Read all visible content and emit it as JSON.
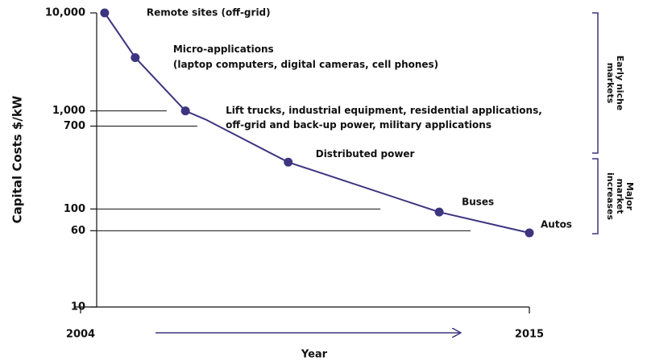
{
  "chart_data": {
    "type": "line",
    "y_label": "Capital Costs $/kW",
    "x_label": "Year",
    "log_y": true,
    "xlim": [
      2004,
      2015
    ],
    "ylim": [
      10,
      10000
    ],
    "xticks": [
      2004,
      2015
    ],
    "yticks": [
      10,
      60,
      100,
      700,
      {
        "value": 1000,
        "label": "1,000"
      },
      {
        "value": 10000,
        "label": "10,000"
      }
    ],
    "hlines": [
      {
        "y": 1000,
        "x_end": 2006.11
      },
      {
        "y": 700,
        "x_end": 2006.86
      },
      {
        "y": 100,
        "x_end": 2011.35
      },
      {
        "y": 60,
        "x_end": 2013.56
      }
    ],
    "series": [
      {
        "name": "Capital cost",
        "color": "#3d3580",
        "x": [
          2004.59,
          2005.34,
          2006.57,
          2007.06,
          2009.09,
          2012.79,
          2015
        ],
        "values": [
          10000,
          3500,
          1000,
          820,
          300,
          93,
          57
        ],
        "markers": [
          true,
          true,
          true,
          false,
          true,
          true,
          true
        ],
        "point_labels": [
          [
            "Remote sites (off-grid)"
          ],
          [
            "Micro-applications",
            "(laptop computers, digital cameras, cell phones)"
          ],
          [
            "Lift trucks, industrial equipment, residential applications,",
            "off-grid and back-up power, military applications"
          ],
          null,
          [
            "Distributed power"
          ],
          [
            "Buses"
          ],
          [
            "Autos"
          ]
        ]
      }
    ],
    "brackets": [
      {
        "lines": [
          "Early niche",
          "markets"
        ]
      },
      {
        "lines": [
          "Major",
          "market",
          "increases"
        ]
      }
    ]
  }
}
